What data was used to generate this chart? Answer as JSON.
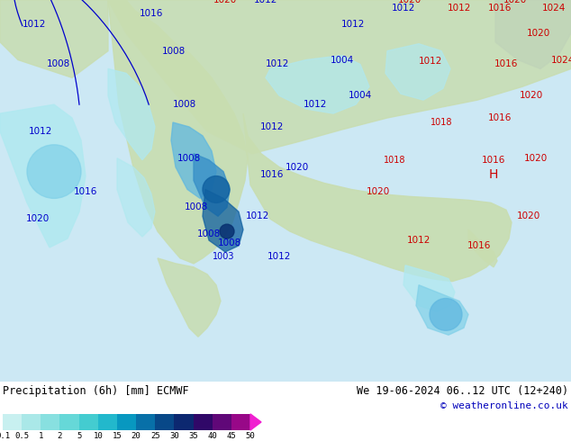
{
  "title_left": "Precipitation (6h) [mm] ECMWF",
  "title_right": "We 19-06-2024 06..12 UTC (12+240)",
  "copyright": "© weatheronline.co.uk",
  "colorbar_labels": [
    "0.1",
    "0.5",
    "1",
    "2",
    "5",
    "10",
    "15",
    "20",
    "25",
    "30",
    "35",
    "40",
    "45",
    "50"
  ],
  "colorbar_colors": [
    "#c8f0f0",
    "#aae8e8",
    "#88e0e0",
    "#66d8d8",
    "#44ccd0",
    "#22b8cc",
    "#0898c0",
    "#0870a8",
    "#084888",
    "#0c2870",
    "#300868",
    "#600878",
    "#980888",
    "#c808a8",
    "#f020d0"
  ],
  "arrow_color": "#f020d0",
  "ocean_color": "#cce8f4",
  "land_color": "#c8ddb0",
  "precip_cyan_light": "#b0e8f0",
  "precip_cyan": "#80d0e8",
  "precip_blue_light": "#60b8e0",
  "precip_blue": "#3890c8",
  "precip_blue_dark": "#1060a0",
  "precip_navy": "#083070",
  "precip_purple": "#300868",
  "precip_magenta": "#c808b0",
  "isobar_blue": "#0000cc",
  "isobar_red": "#cc0000",
  "land_gray": "#b8c8a8",
  "mountain_gray": "#a8b898",
  "fig_width": 6.34,
  "fig_height": 4.9,
  "dpi": 100
}
